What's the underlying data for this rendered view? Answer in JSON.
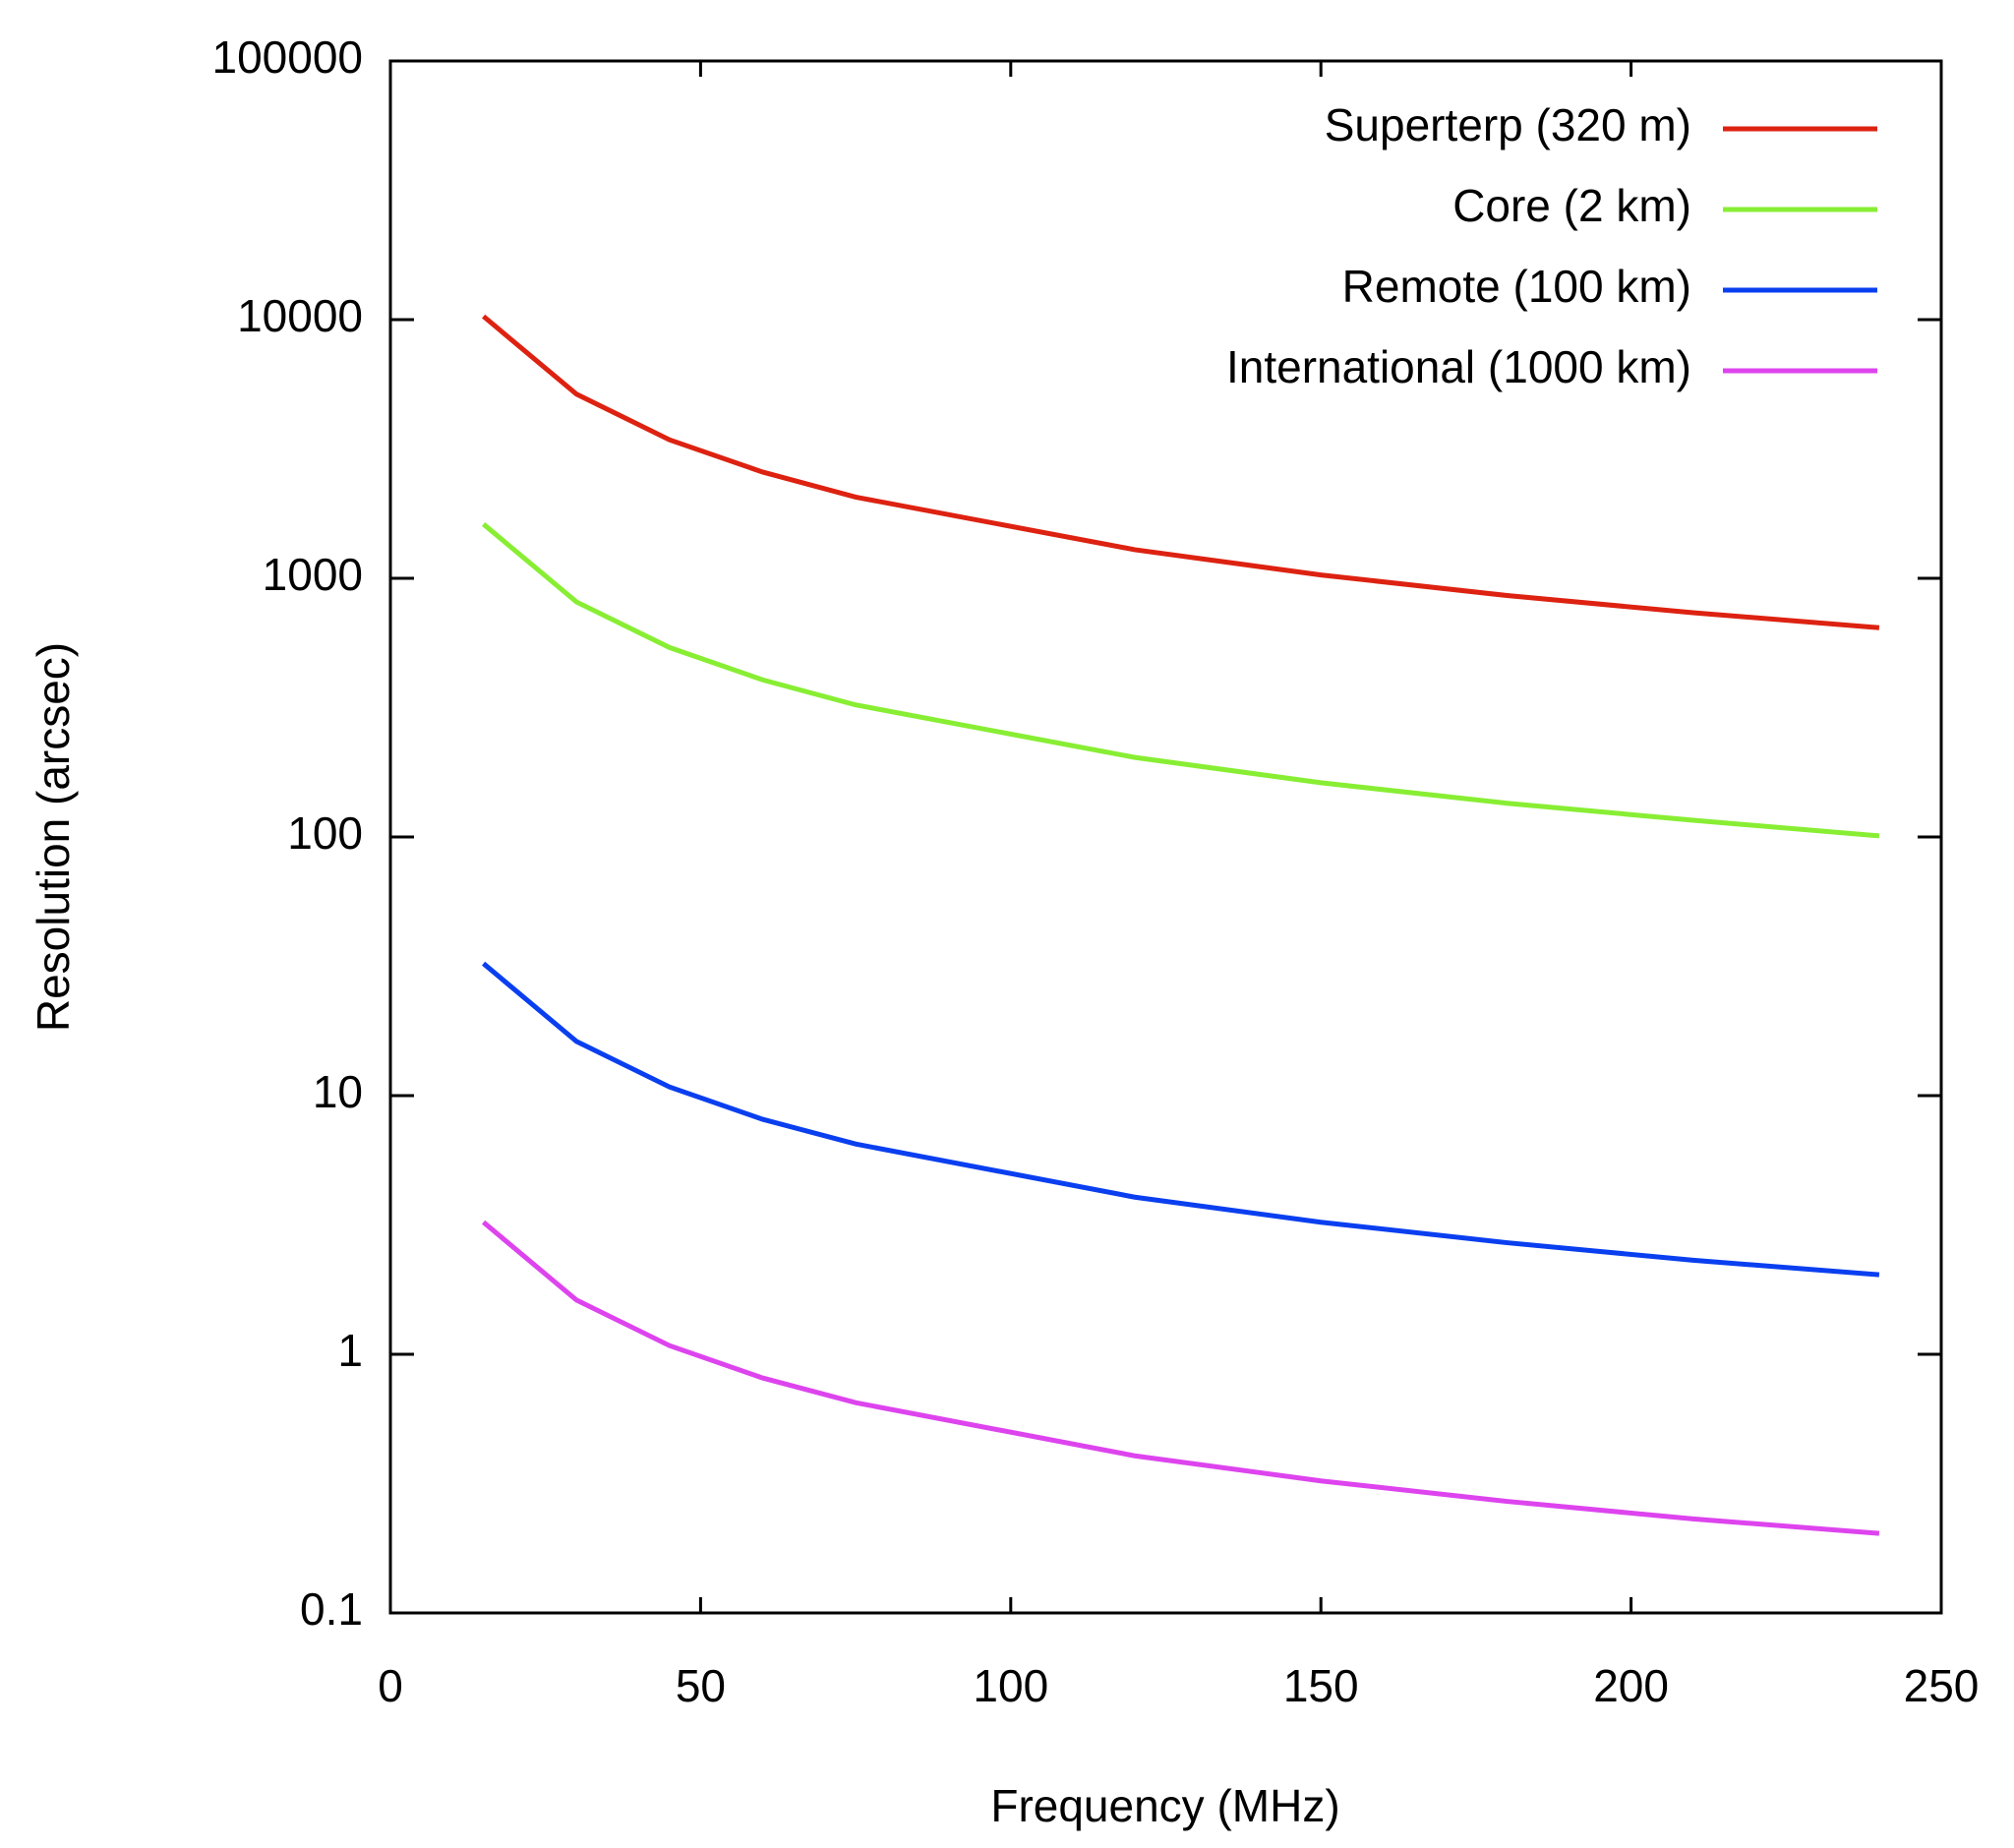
{
  "chart_data": {
    "type": "line",
    "x_label": "Frequency (MHz)",
    "y_label": "Resolution (arcsec)",
    "xlim": [
      0,
      250
    ],
    "xticks": [
      0,
      50,
      100,
      150,
      200,
      250
    ],
    "ylim": [
      0.1,
      100000
    ],
    "yticks": [
      0.1,
      1,
      10,
      100,
      1000,
      10000,
      100000
    ],
    "y_scale": "log",
    "legend": "upper right",
    "x": [
      15,
      30,
      45,
      60,
      75,
      120,
      150,
      180,
      210,
      240
    ],
    "series": [
      {
        "name": "Superterp (320 m)",
        "color": "#dd2211",
        "values": [
          10300,
          5150,
          3430,
          2575,
          2060,
          1290,
          1030,
          858,
          736,
          644
        ]
      },
      {
        "name": "Core (2 km)",
        "color": "#88ee33",
        "values": [
          1620,
          810,
          540,
          405,
          324,
          203,
          162,
          135,
          116,
          101
        ]
      },
      {
        "name": "Remote (100 km)",
        "color": "#0a3ff0",
        "values": [
          32.4,
          16.2,
          10.8,
          8.1,
          6.5,
          4.05,
          3.24,
          2.7,
          2.31,
          2.03
        ]
      },
      {
        "name": "International (1000 km)",
        "color": "#dd44ee",
        "values": [
          3.24,
          1.62,
          1.08,
          0.81,
          0.65,
          0.405,
          0.324,
          0.27,
          0.231,
          0.203
        ]
      }
    ]
  }
}
